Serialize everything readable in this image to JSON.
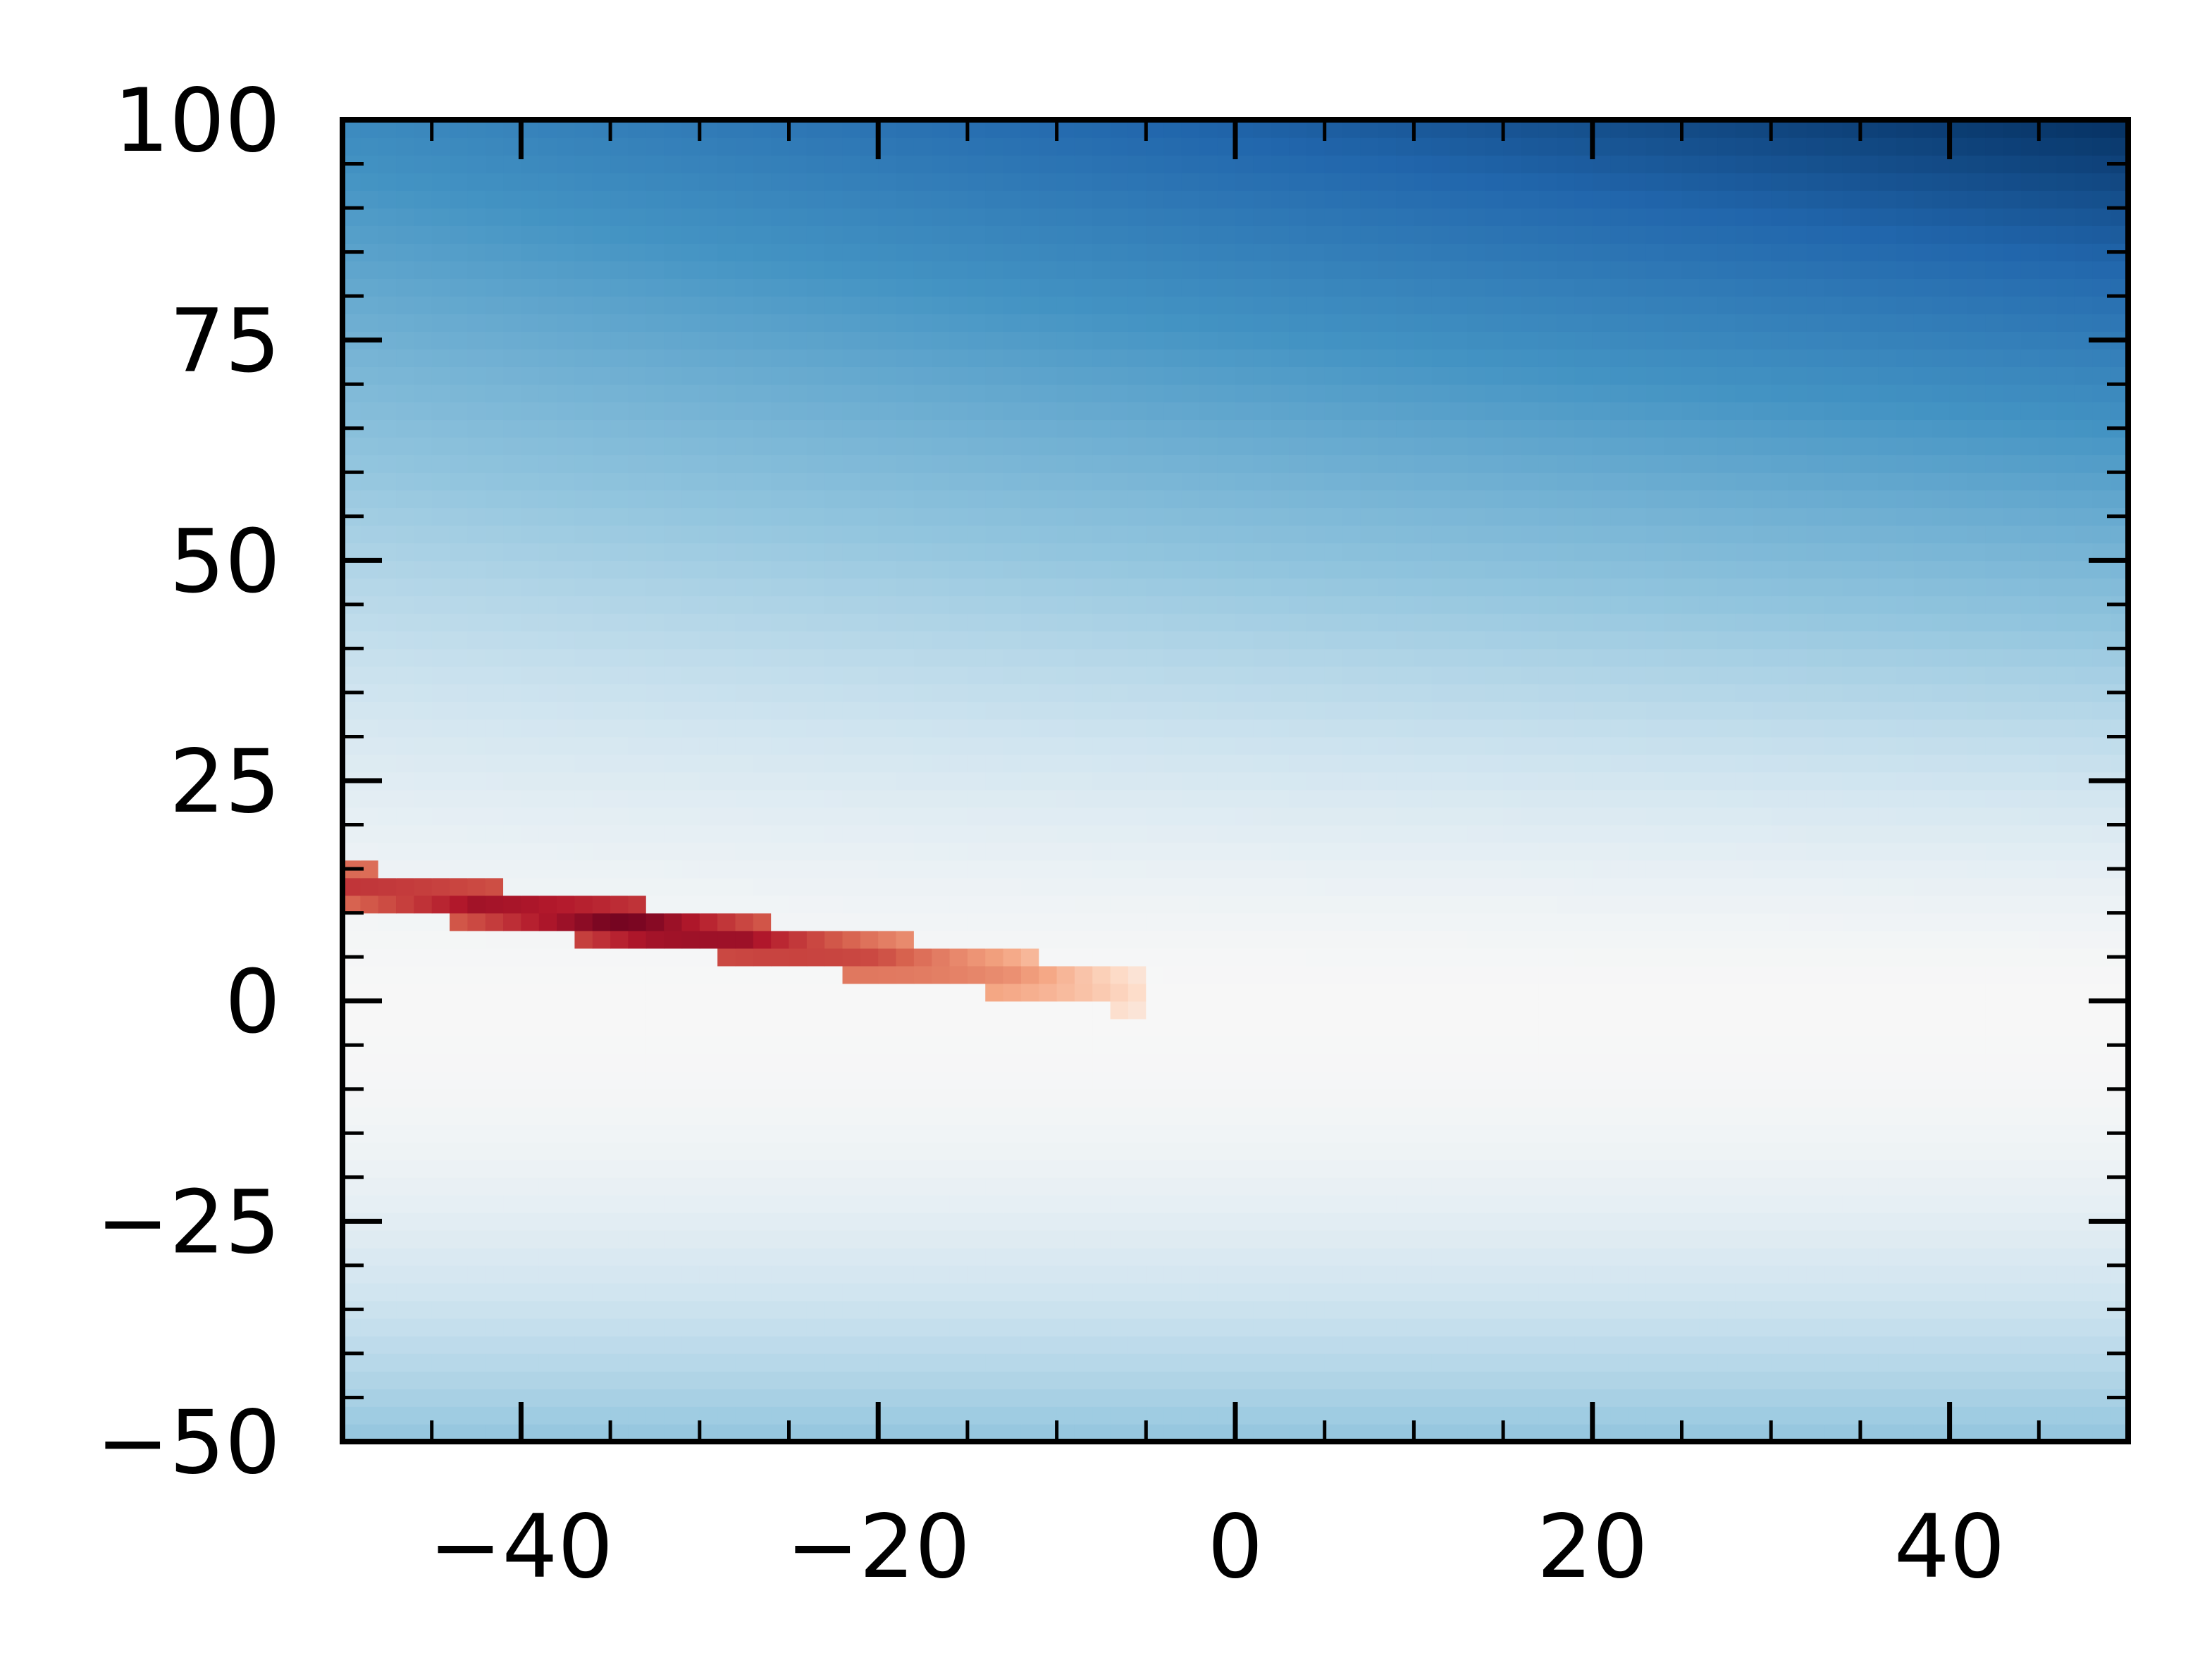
{
  "chart_data": {
    "type": "heatmap",
    "title": "",
    "xlabel": "",
    "ylabel": "",
    "xlim": [
      -50,
      50
    ],
    "ylim": [
      -50,
      100
    ],
    "x_ticks": [
      -40,
      -20,
      0,
      20,
      40
    ],
    "x_tick_labels": [
      "−40",
      "−20",
      "0",
      "20",
      "40"
    ],
    "y_ticks": [
      -50,
      -25,
      0,
      25,
      50,
      75,
      100
    ],
    "y_tick_labels": [
      "−50",
      "−25",
      "0",
      "25",
      "50",
      "75",
      "100"
    ],
    "x_minor_step": 5,
    "y_minor_step": 5,
    "tick_direction": "in",
    "ticks_on_all_sides": true,
    "grid": false,
    "legend": "none",
    "colormap": "RdBu",
    "colorbar": false,
    "grid_cells": {
      "nx": 100,
      "ny": 75
    },
    "background_field": {
      "description_values": "negative field, |value| grows with y away from 0 and increases toward +x at the top",
      "min_value": -1.0,
      "center_value": 0.0
    },
    "positive_band": {
      "x_start": -50,
      "y_start": 13,
      "x_end": -5,
      "y_end": 1,
      "peak_x": -33,
      "peak_value": 1.0,
      "thickness": 2.5
    },
    "colors": {
      "axes": "#000000",
      "negative_extreme": "#053061",
      "positive_extreme": "#67001f",
      "center": "#f7f7f7"
    }
  }
}
